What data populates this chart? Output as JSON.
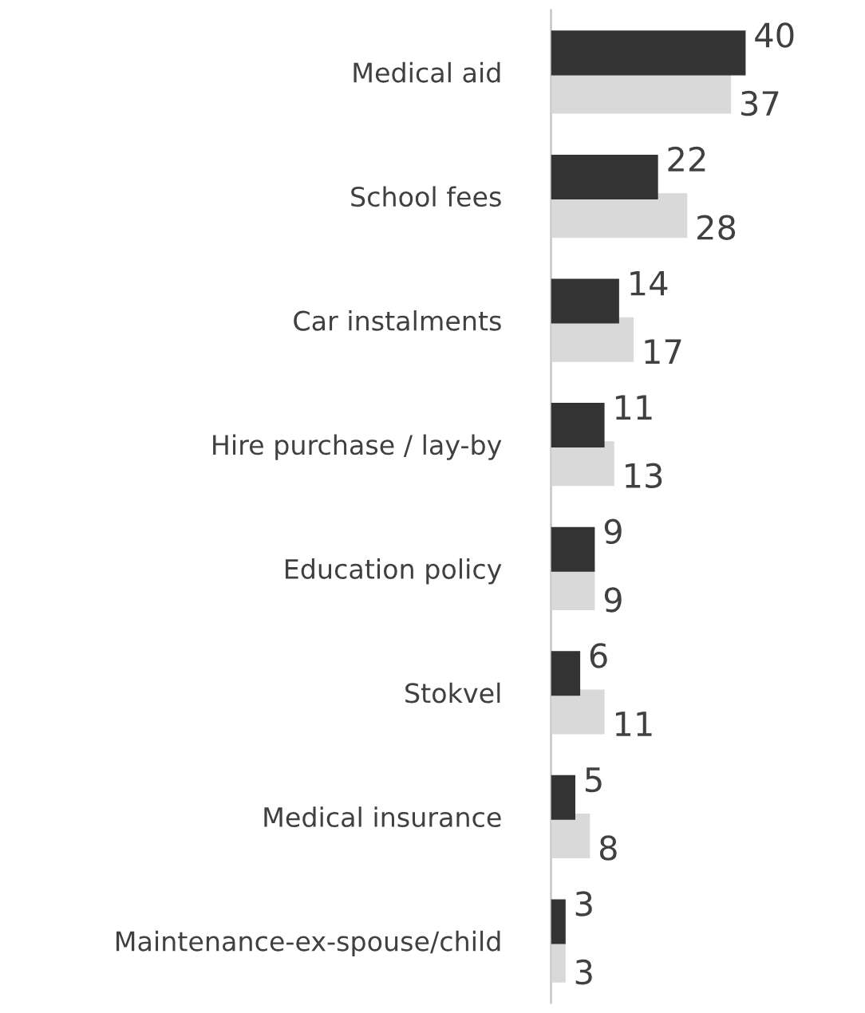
{
  "chart_data": {
    "type": "bar",
    "orientation": "horizontal",
    "categories": [
      "Medical aid",
      "School fees",
      "Car instalments",
      "Hire purchase / lay-by",
      "Education policy",
      "Stokvel",
      "Medical insurance",
      "Maintenance-ex-spouse/child"
    ],
    "series": [
      {
        "color": "#333333",
        "values": [
          40,
          22,
          14,
          11,
          9,
          6,
          5,
          3
        ]
      },
      {
        "color": "#d9d9d9",
        "values": [
          37,
          28,
          17,
          13,
          9,
          11,
          8,
          3
        ]
      }
    ],
    "data_labels": true,
    "grid": false,
    "legend": false
  }
}
